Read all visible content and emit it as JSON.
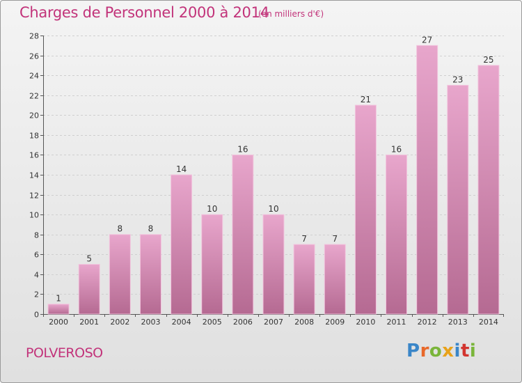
{
  "title": "Charges de Personnel 2000 à 2014",
  "subtitle": "(en milliers d'€)",
  "footer": {
    "commune": "POLVEROSO",
    "logo_letters": [
      "P",
      "r",
      "o",
      "x",
      "i",
      "t",
      "i"
    ],
    "logo_colors": [
      "#3a86c8",
      "#e8682a",
      "#7ab53a",
      "#e8a21a",
      "#3a86c8",
      "#d2352f",
      "#7ab53a"
    ]
  },
  "colors": {
    "bar_top": "#e8a6cc",
    "bar_bottom": "#b56a92",
    "accent": "#c2337a"
  },
  "chart_data": {
    "type": "bar",
    "categories": [
      "2000",
      "2001",
      "2002",
      "2003",
      "2004",
      "2005",
      "2006",
      "2007",
      "2008",
      "2009",
      "2010",
      "2011",
      "2012",
      "2013",
      "2014"
    ],
    "values": [
      1,
      5,
      8,
      8,
      14,
      10,
      16,
      10,
      7,
      7,
      21,
      16,
      27,
      23,
      25
    ],
    "ylim": [
      0,
      28
    ],
    "yticks": [
      0,
      2,
      4,
      6,
      8,
      10,
      12,
      14,
      16,
      18,
      20,
      22,
      24,
      26,
      28
    ],
    "grid": true
  }
}
